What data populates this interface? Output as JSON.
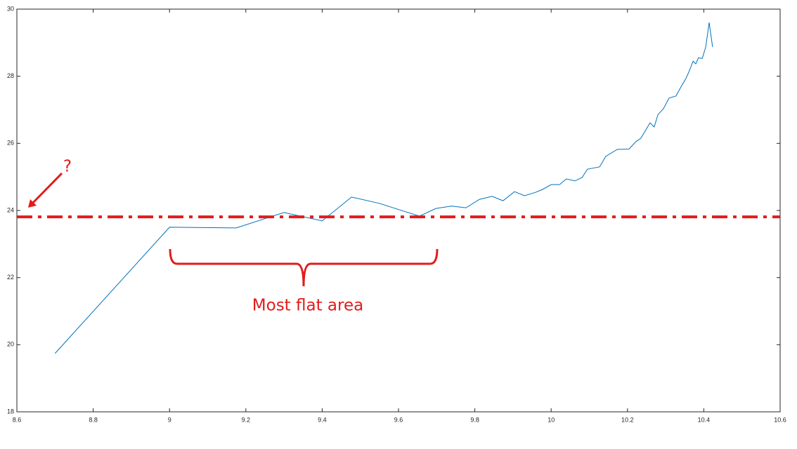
{
  "chart_data": {
    "type": "line",
    "x": [
      8.7,
      9.0,
      9.175,
      9.3,
      9.4,
      9.477,
      9.55,
      9.655,
      9.698,
      9.738,
      9.777,
      9.812,
      9.845,
      9.874,
      9.904,
      9.93,
      9.959,
      9.978,
      10.0,
      10.022,
      10.04,
      10.062,
      10.081,
      10.095,
      10.127,
      10.143,
      10.173,
      10.204,
      10.222,
      10.235,
      10.259,
      10.27,
      10.28,
      10.294,
      10.309,
      10.327,
      10.342,
      10.353,
      10.361,
      10.372,
      10.379,
      10.386,
      10.396,
      10.405,
      10.414,
      10.423
    ],
    "values": [
      19.74,
      23.5,
      23.48,
      23.94,
      23.69,
      24.4,
      24.21,
      23.83,
      24.06,
      24.13,
      24.08,
      24.33,
      24.42,
      24.29,
      24.56,
      24.44,
      24.54,
      24.63,
      24.77,
      24.77,
      24.94,
      24.88,
      24.98,
      25.23,
      25.3,
      25.61,
      25.82,
      25.83,
      26.05,
      26.15,
      26.61,
      26.49,
      26.86,
      27.03,
      27.35,
      27.41,
      27.72,
      27.93,
      28.13,
      28.45,
      28.37,
      28.55,
      28.53,
      28.87,
      29.6,
      28.87
    ],
    "color": "#0072bd",
    "xlim": [
      8.6,
      10.6
    ],
    "xticks": [
      8.6,
      8.8,
      9,
      9.2,
      9.4,
      9.6,
      9.8,
      10,
      10.2,
      10.4,
      10.6
    ],
    "ylim": [
      18,
      30
    ],
    "yticks": [
      18,
      20,
      22,
      24,
      26,
      28,
      30
    ],
    "reference_line": {
      "value": 23.81,
      "color": "#e31b1b"
    },
    "annotations": [
      "?",
      "Most flat area"
    ]
  }
}
